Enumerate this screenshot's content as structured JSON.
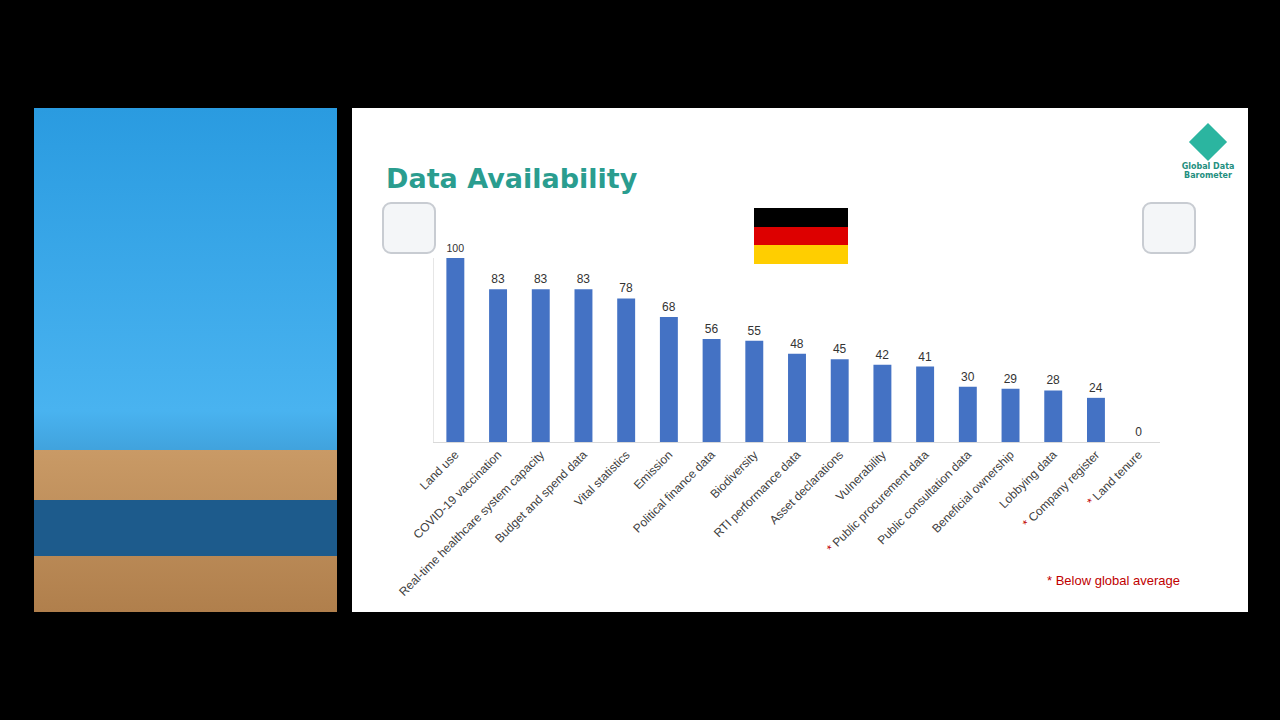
{
  "chart_data": {
    "type": "bar",
    "title": "Data Availability",
    "categories": [
      "Land use",
      "COVID-19 vaccination",
      "Real-time healthcare system capacity",
      "Budget and spend data",
      "Vital statistics",
      "Emission",
      "Political finance data",
      "Biodiversity",
      "RTI performance data",
      "Asset declarations",
      "Vulnerability",
      "* Public procurement data",
      "Public consultation data",
      "Beneficial ownership",
      "Lobbying data",
      "* Company register",
      "* Land tenure"
    ],
    "values": [
      100,
      83,
      83,
      83,
      78,
      68,
      56,
      55,
      48,
      45,
      42,
      41,
      30,
      29,
      28,
      24,
      0
    ],
    "color": "#4472c4",
    "ylim": [
      0,
      100
    ],
    "grid": false,
    "data_labels": true,
    "tick_labels": "x",
    "annotations": [
      "* Below global average"
    ]
  },
  "logo": {
    "text": "Global Data Barometer"
  }
}
